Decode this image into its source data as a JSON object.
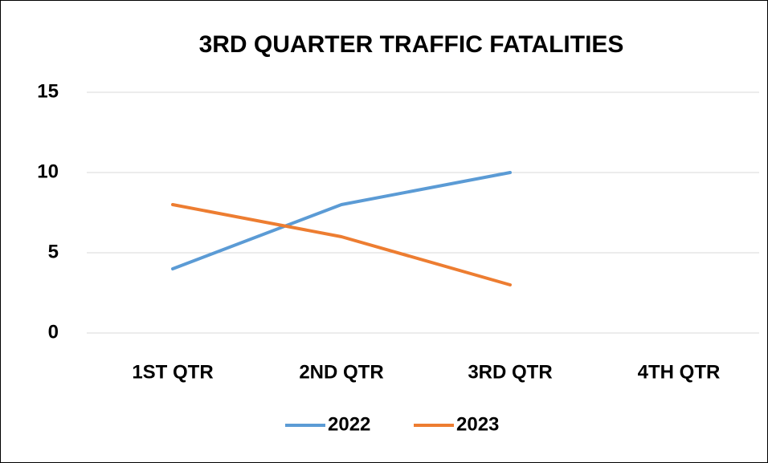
{
  "chart_data": {
    "type": "line",
    "title": "3RD QUARTER TRAFFIC FATALITIES",
    "categories": [
      "1ST QTR",
      "2ND QTR",
      "3RD QTR",
      "4TH QTR"
    ],
    "series": [
      {
        "name": "2022",
        "color": "#5b9bd5",
        "values": [
          4,
          8,
          10,
          null
        ]
      },
      {
        "name": "2023",
        "color": "#ed7d31",
        "values": [
          8,
          6,
          3,
          null
        ]
      }
    ],
    "ylim": [
      0,
      15
    ],
    "yticks": [
      0,
      5,
      10,
      15
    ],
    "grid": true,
    "legend": "bottom"
  }
}
